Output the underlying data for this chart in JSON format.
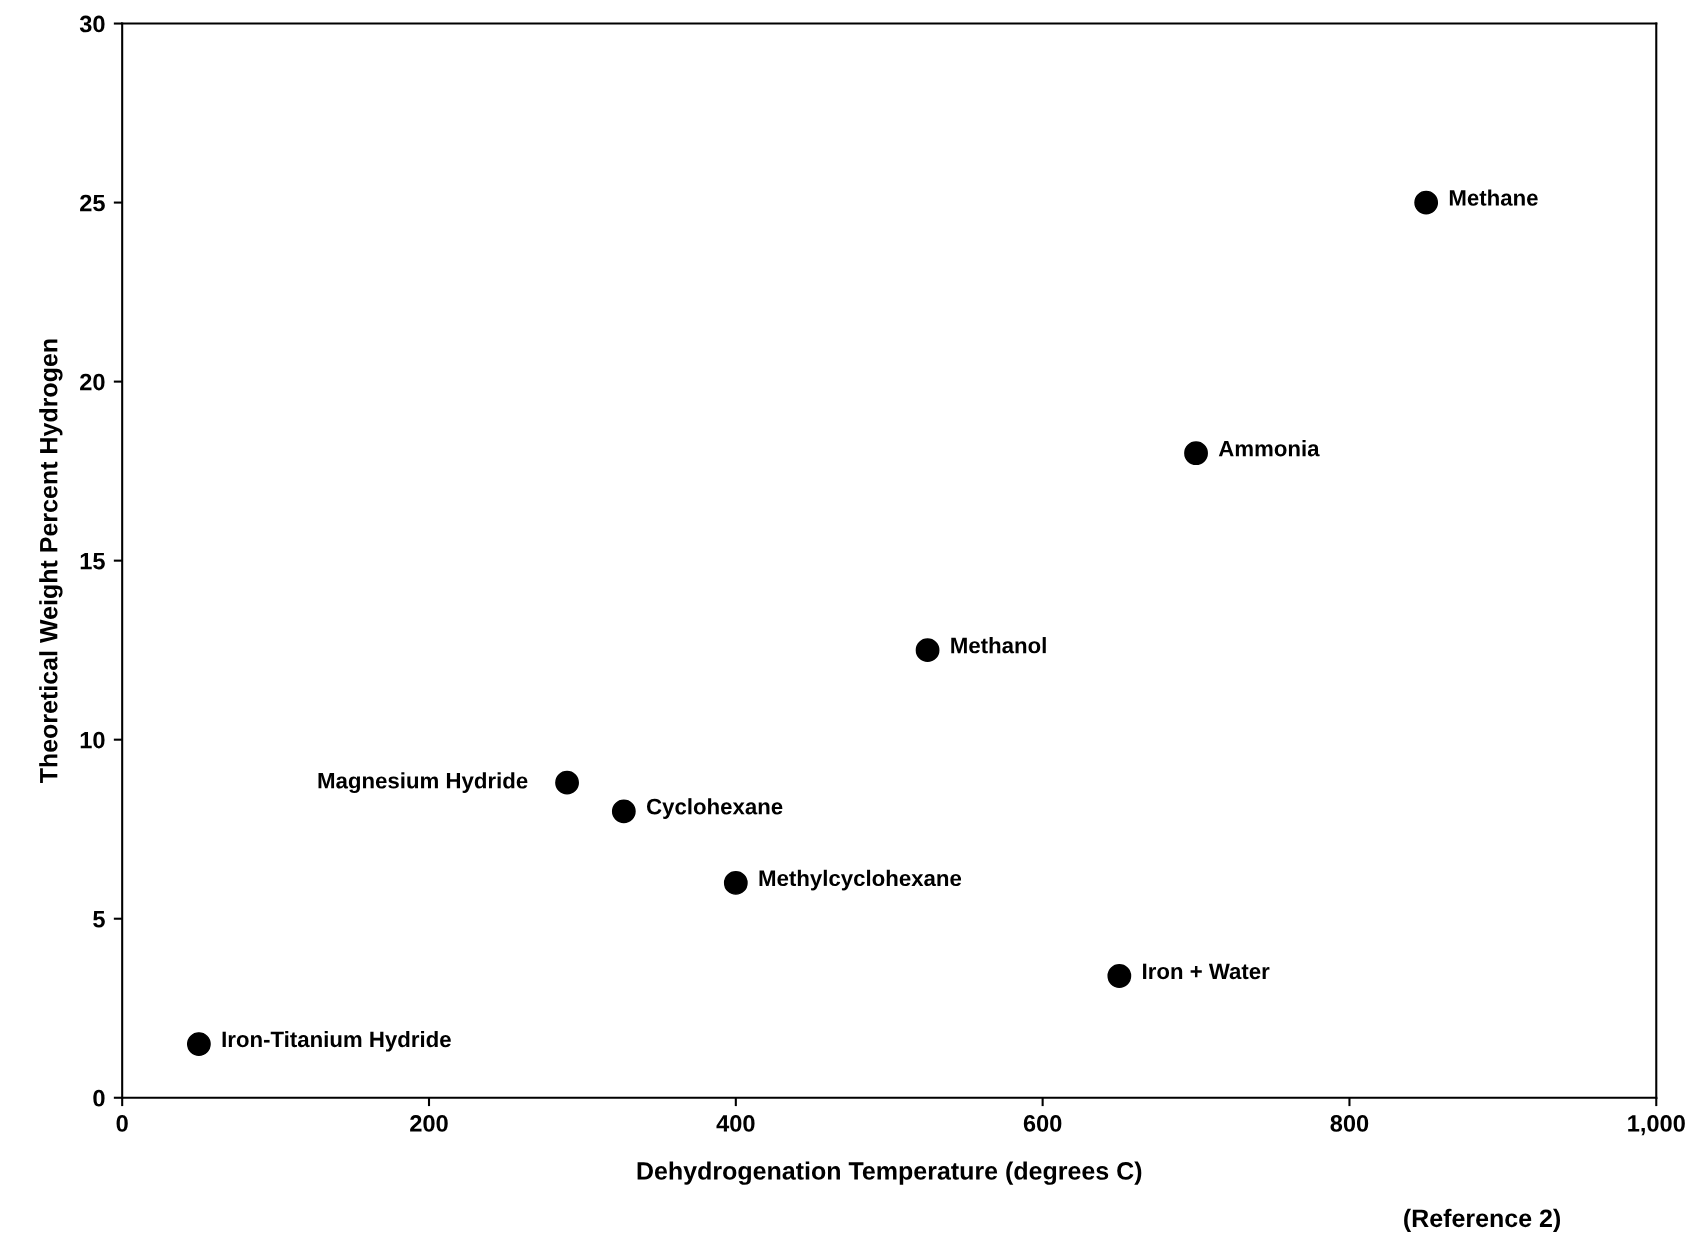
{
  "chart_data": {
    "type": "scatter",
    "xlabel": "Dehydrogenation Temperature (degrees C)",
    "ylabel": "Theoretical Weight Percent Hydrogen",
    "x": [
      850,
      700,
      525,
      290,
      327,
      400,
      650,
      50
    ],
    "series": [
      {
        "color": "#000000",
        "values": [
          25,
          18,
          12.5,
          8.8,
          8.0,
          6.0,
          3.4,
          1.5
        ]
      }
    ],
    "xlim": [
      0,
      1000
    ],
    "ylim": [
      0,
      30
    ],
    "xticks": [
      0,
      200,
      400,
      600,
      800,
      {
        "value": 1000,
        "label": "1,000"
      }
    ],
    "yticks": [
      0,
      5,
      10,
      15,
      20,
      25,
      30
    ],
    "grid": false,
    "legend": false,
    "marker": "circle",
    "annotations": [
      {
        "text": "Methane",
        "x": 850,
        "y": 25
      },
      {
        "text": "Ammonia",
        "x": 700,
        "y": 18
      },
      {
        "text": "Methanol",
        "x": 525,
        "y": 12.5
      },
      {
        "text": "Magnesium Hydride",
        "x": 290,
        "y": 8.8
      },
      {
        "text": "Cyclohexane",
        "x": 327,
        "y": 8.0
      },
      {
        "text": "Methylcyclohexane",
        "x": 400,
        "y": 6.0
      },
      {
        "text": "Iron + Water",
        "x": 650,
        "y": 3.4
      },
      {
        "text": "Iron-Titanium Hydride",
        "x": 50,
        "y": 1.5
      },
      "(Reference 2)"
    ]
  }
}
